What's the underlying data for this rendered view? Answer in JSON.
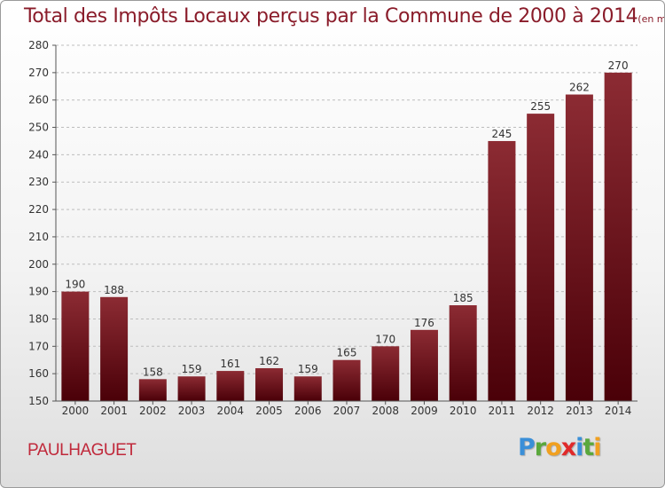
{
  "header": {
    "title": "Total des Impôts Locaux perçus par la Commune de 2000 à 2014",
    "unit": "(en milliers d'€)"
  },
  "commune": "PAULHAGUET",
  "logo": {
    "letters": [
      "P",
      "r",
      "o",
      "x",
      "i",
      "t",
      "i"
    ],
    "colors": [
      "#3a8fd8",
      "#5aa83c",
      "#f0a020",
      "#e02a2a",
      "#3a8fd8",
      "#5aa83c",
      "#f0a020"
    ]
  },
  "colors": {
    "bar_top": "#8c2b33",
    "bar_bottom": "#4a0008",
    "title": "#8a1c2a",
    "commune": "#c0293b"
  },
  "chart_data": {
    "type": "bar",
    "title": "Total des Impôts Locaux perçus par la Commune de 2000 à 2014",
    "categories": [
      "2000",
      "2001",
      "2002",
      "2003",
      "2004",
      "2005",
      "2006",
      "2007",
      "2008",
      "2009",
      "2010",
      "2011",
      "2012",
      "2013",
      "2014"
    ],
    "values": [
      190,
      188,
      158,
      159,
      161,
      162,
      159,
      165,
      170,
      176,
      185,
      245,
      255,
      262,
      270
    ],
    "ylim": [
      150,
      280
    ],
    "yticks": [
      150,
      160,
      170,
      180,
      190,
      200,
      210,
      220,
      230,
      240,
      250,
      260,
      270,
      280
    ],
    "grid": "horizontal dashed",
    "data_labels": true
  }
}
